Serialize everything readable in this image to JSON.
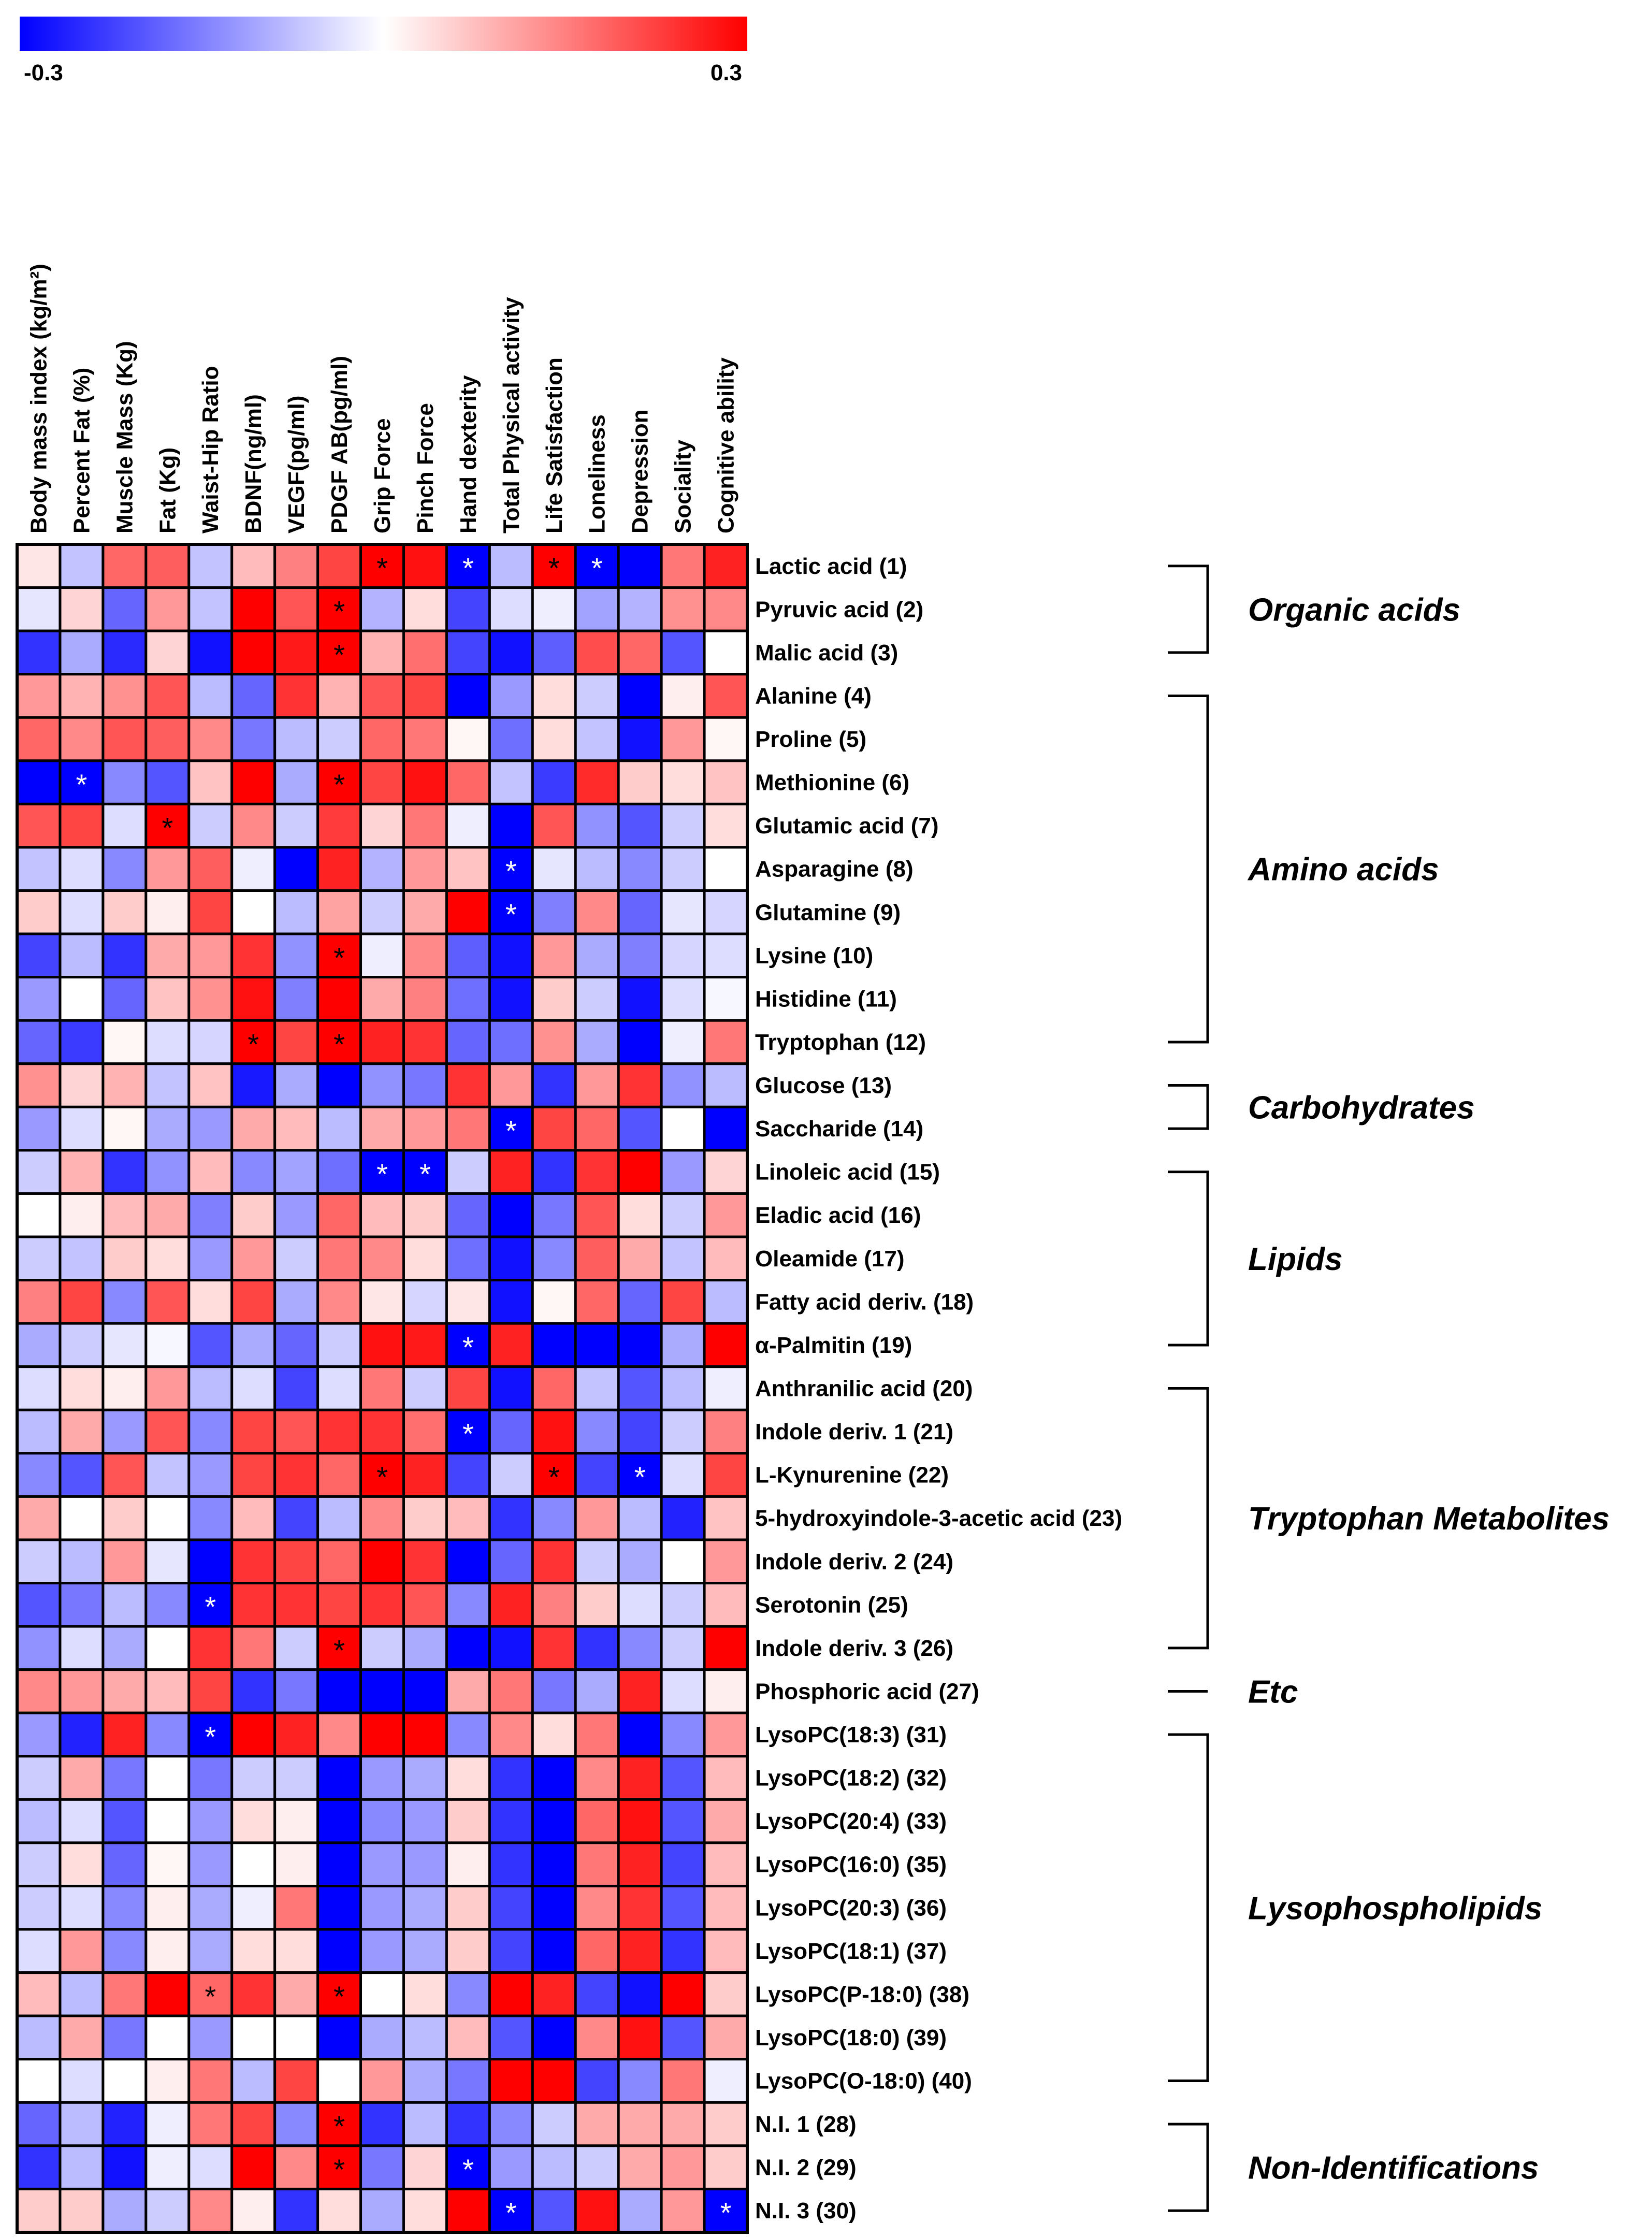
{
  "chart_data": {
    "type": "heatmap",
    "colorbar": {
      "min": -0.3,
      "max": 0.3,
      "min_label": "-0.3",
      "max_label": "0.3",
      "colors": {
        "negative": "#0000FF",
        "zero": "#FFFFFF",
        "positive": "#FF0000"
      }
    },
    "columns": [
      "Body mass index (kg/m²)",
      "Percent Fat (%)",
      "Muscle Mass (Kg)",
      "Fat (Kg)",
      "Waist-Hip Ratio",
      "BDNF(ng/ml)",
      "VEGF(pg/ml)",
      "PDGF AB(pg/ml)",
      "Grip Force",
      "Pinch Force",
      "Hand dexterity",
      "Total Physical activity",
      "Life Satisfaction",
      "Loneliness",
      "Depression",
      "Sociality",
      "Cognitive ability"
    ],
    "rows": [
      "Lactic acid (1)",
      "Pyruvic acid (2)",
      "Malic acid (3)",
      "Alanine (4)",
      "Proline (5)",
      "Methionine (6)",
      "Glutamic acid (7)",
      "Asparagine (8)",
      "Glutamine (9)",
      "Lysine (10)",
      "Histidine (11)",
      "Tryptophan (12)",
      "Glucose (13)",
      "Saccharide (14)",
      "Linoleic acid (15)",
      "Eladic acid (16)",
      "Oleamide (17)",
      "Fatty acid deriv. (18)",
      "α-Palmitin (19)",
      "Anthranilic acid (20)",
      "Indole deriv. 1  (21)",
      "L-Kynurenine (22)",
      "5-hydroxyindole-3-acetic acid (23)",
      "Indole deriv. 2 (24)",
      "Serotonin (25)",
      "Indole deriv. 3 (26)",
      "Phosphoric acid (27)",
      "LysoPC(18:3) (31)",
      "LysoPC(18:2) (32)",
      "LysoPC(20:4) (33)",
      "LysoPC(16:0) (35)",
      "LysoPC(20:3) (36)",
      "LysoPC(18:1) (37)",
      "LysoPC(P-18:0) (38)",
      "LysoPC(18:0) (39)",
      "LysoPC(O-18:0) (40)",
      "N.I. 1 (28)",
      "N.I. 2 (29)",
      "N.I. 3 (30)"
    ],
    "values": [
      [
        0.03,
        -0.07,
        0.18,
        0.19,
        -0.07,
        0.08,
        0.15,
        0.22,
        0.3,
        0.28,
        -0.3,
        -0.08,
        0.3,
        -0.3,
        -0.3,
        0.16,
        0.26
      ],
      [
        -0.03,
        0.05,
        -0.18,
        0.12,
        -0.07,
        0.3,
        0.2,
        0.3,
        -0.09,
        0.04,
        -0.22,
        -0.04,
        -0.02,
        -0.11,
        -0.09,
        0.13,
        0.14
      ],
      [
        -0.24,
        -0.1,
        -0.25,
        0.05,
        -0.28,
        0.3,
        0.27,
        0.3,
        0.09,
        0.17,
        -0.22,
        -0.28,
        -0.19,
        0.21,
        0.18,
        -0.2,
        0.0
      ],
      [
        0.12,
        0.09,
        0.13,
        0.2,
        -0.08,
        -0.18,
        0.24,
        0.09,
        0.2,
        0.22,
        -0.3,
        -0.12,
        0.04,
        -0.06,
        -0.3,
        0.02,
        0.2
      ],
      [
        0.18,
        0.14,
        0.2,
        0.19,
        0.14,
        -0.16,
        -0.08,
        -0.06,
        0.18,
        0.16,
        0.01,
        -0.17,
        0.04,
        -0.07,
        -0.28,
        0.12,
        0.01
      ],
      [
        -0.3,
        -0.3,
        -0.14,
        -0.2,
        0.07,
        0.3,
        -0.1,
        0.3,
        0.22,
        0.28,
        0.18,
        -0.07,
        -0.23,
        0.25,
        0.06,
        0.04,
        0.07
      ],
      [
        0.2,
        0.22,
        -0.04,
        0.3,
        -0.06,
        0.14,
        -0.06,
        0.23,
        0.05,
        0.16,
        -0.02,
        -0.3,
        0.2,
        -0.13,
        -0.2,
        -0.06,
        0.04
      ],
      [
        -0.07,
        -0.04,
        -0.14,
        0.12,
        0.19,
        -0.02,
        -0.3,
        0.26,
        -0.09,
        0.12,
        0.07,
        -0.3,
        -0.03,
        -0.08,
        -0.14,
        -0.06,
        0.0
      ],
      [
        0.06,
        -0.04,
        0.06,
        0.02,
        0.22,
        0.0,
        -0.08,
        0.11,
        -0.06,
        0.1,
        0.3,
        -0.3,
        -0.15,
        0.14,
        -0.18,
        -0.03,
        -0.05
      ],
      [
        -0.22,
        -0.08,
        -0.24,
        0.1,
        0.12,
        0.24,
        -0.13,
        0.3,
        -0.02,
        0.14,
        -0.19,
        -0.28,
        0.12,
        -0.1,
        -0.15,
        -0.05,
        -0.04
      ],
      [
        -0.12,
        0.0,
        -0.18,
        0.07,
        0.13,
        0.28,
        -0.15,
        0.3,
        0.1,
        0.15,
        -0.17,
        -0.28,
        0.06,
        -0.06,
        -0.28,
        -0.04,
        -0.01
      ],
      [
        -0.18,
        -0.23,
        0.01,
        -0.04,
        -0.05,
        0.3,
        0.22,
        0.3,
        0.26,
        0.24,
        -0.18,
        -0.17,
        0.13,
        -0.1,
        -0.3,
        -0.02,
        0.16
      ],
      [
        0.13,
        0.05,
        0.09,
        -0.07,
        0.07,
        -0.27,
        -0.1,
        -0.3,
        -0.13,
        -0.16,
        0.24,
        0.12,
        -0.24,
        0.12,
        0.24,
        -0.13,
        -0.08
      ],
      [
        -0.12,
        -0.04,
        0.01,
        -0.1,
        -0.12,
        0.1,
        0.08,
        -0.08,
        0.1,
        0.12,
        0.16,
        -0.3,
        0.22,
        0.18,
        -0.2,
        0.0,
        -0.3
      ],
      [
        -0.06,
        0.09,
        -0.24,
        -0.13,
        0.08,
        -0.14,
        -0.11,
        -0.17,
        -0.3,
        -0.3,
        -0.06,
        0.26,
        -0.24,
        0.24,
        0.3,
        -0.12,
        0.05
      ],
      [
        0.0,
        0.02,
        0.08,
        0.1,
        -0.15,
        0.06,
        -0.12,
        0.18,
        0.08,
        0.06,
        -0.18,
        -0.3,
        -0.16,
        0.2,
        0.04,
        -0.06,
        0.12
      ],
      [
        -0.06,
        -0.07,
        0.06,
        0.04,
        -0.12,
        0.12,
        -0.06,
        0.16,
        0.14,
        0.04,
        -0.17,
        -0.28,
        -0.14,
        0.19,
        0.1,
        -0.07,
        0.08
      ],
      [
        0.15,
        0.22,
        -0.14,
        0.2,
        0.04,
        0.22,
        -0.1,
        0.14,
        0.03,
        -0.05,
        0.03,
        -0.28,
        0.01,
        0.18,
        -0.18,
        0.22,
        -0.08
      ],
      [
        -0.1,
        -0.06,
        -0.03,
        -0.01,
        -0.2,
        -0.1,
        -0.18,
        -0.06,
        0.28,
        0.27,
        -0.3,
        0.26,
        -0.3,
        -0.3,
        -0.3,
        -0.1,
        0.3
      ],
      [
        -0.04,
        0.04,
        0.02,
        0.12,
        -0.08,
        -0.04,
        -0.22,
        -0.04,
        0.16,
        -0.06,
        0.22,
        -0.28,
        0.18,
        -0.07,
        -0.2,
        -0.08,
        -0.02
      ],
      [
        -0.08,
        0.1,
        -0.12,
        0.2,
        -0.14,
        0.22,
        0.2,
        0.24,
        0.24,
        0.17,
        -0.3,
        -0.18,
        0.28,
        -0.14,
        -0.22,
        -0.06,
        0.15
      ],
      [
        -0.14,
        -0.2,
        0.2,
        -0.07,
        -0.12,
        0.22,
        0.24,
        0.18,
        0.3,
        0.26,
        -0.22,
        -0.06,
        0.3,
        -0.22,
        -0.3,
        -0.04,
        0.22
      ],
      [
        0.1,
        0.0,
        0.06,
        0.0,
        -0.14,
        0.08,
        -0.22,
        -0.08,
        0.14,
        0.06,
        0.08,
        -0.24,
        -0.14,
        0.12,
        -0.08,
        -0.26,
        0.07
      ],
      [
        -0.06,
        -0.08,
        0.12,
        -0.03,
        -0.3,
        0.24,
        0.22,
        0.18,
        0.3,
        0.24,
        -0.3,
        -0.18,
        0.24,
        -0.06,
        -0.1,
        0.0,
        0.12
      ],
      [
        -0.2,
        -0.16,
        -0.08,
        -0.14,
        -0.3,
        0.24,
        0.24,
        0.22,
        0.24,
        0.2,
        -0.14,
        0.26,
        0.15,
        0.06,
        -0.04,
        -0.06,
        0.08
      ],
      [
        -0.13,
        -0.04,
        -0.1,
        0.0,
        0.24,
        0.16,
        -0.06,
        0.3,
        -0.06,
        -0.1,
        -0.3,
        -0.28,
        0.24,
        -0.24,
        -0.14,
        -0.06,
        0.3
      ],
      [
        0.14,
        0.12,
        0.1,
        0.08,
        0.22,
        -0.24,
        -0.16,
        -0.3,
        -0.3,
        -0.3,
        0.1,
        0.16,
        -0.16,
        -0.1,
        0.26,
        -0.04,
        0.02
      ],
      [
        -0.12,
        -0.26,
        0.26,
        -0.14,
        -0.3,
        0.3,
        0.26,
        0.14,
        0.3,
        0.3,
        -0.14,
        0.14,
        0.04,
        0.16,
        -0.3,
        -0.14,
        0.12
      ],
      [
        -0.06,
        0.1,
        -0.16,
        0.0,
        -0.16,
        -0.06,
        -0.06,
        -0.3,
        -0.12,
        -0.1,
        0.04,
        -0.24,
        -0.3,
        0.14,
        0.26,
        -0.2,
        0.08
      ],
      [
        -0.08,
        -0.04,
        -0.2,
        0.0,
        -0.12,
        0.04,
        0.02,
        -0.3,
        -0.14,
        -0.12,
        0.06,
        -0.24,
        -0.3,
        0.18,
        0.28,
        -0.2,
        0.1
      ],
      [
        -0.06,
        0.04,
        -0.18,
        0.01,
        -0.12,
        0.0,
        0.02,
        -0.3,
        -0.12,
        -0.12,
        0.02,
        -0.24,
        -0.3,
        0.16,
        0.26,
        -0.22,
        0.08
      ],
      [
        -0.06,
        -0.04,
        -0.14,
        0.02,
        -0.1,
        -0.02,
        0.16,
        -0.3,
        -0.12,
        -0.1,
        0.06,
        -0.22,
        -0.3,
        0.14,
        0.24,
        -0.2,
        0.08
      ],
      [
        -0.04,
        0.12,
        -0.14,
        0.02,
        -0.1,
        0.04,
        0.04,
        -0.3,
        -0.12,
        -0.1,
        0.06,
        -0.22,
        -0.3,
        0.18,
        0.26,
        -0.24,
        0.08
      ],
      [
        0.08,
        -0.08,
        0.16,
        0.3,
        0.18,
        0.24,
        0.1,
        0.3,
        0.0,
        0.04,
        -0.14,
        0.3,
        0.26,
        -0.22,
        -0.28,
        0.3,
        0.06
      ],
      [
        -0.08,
        0.1,
        -0.16,
        0.0,
        -0.12,
        0.0,
        0.0,
        -0.3,
        -0.1,
        -0.08,
        0.08,
        -0.2,
        -0.3,
        0.14,
        0.28,
        -0.2,
        0.1
      ],
      [
        0.0,
        -0.04,
        0.0,
        0.02,
        0.16,
        -0.08,
        0.22,
        0.0,
        0.12,
        -0.1,
        -0.16,
        0.3,
        0.3,
        -0.22,
        -0.14,
        0.16,
        -0.02
      ],
      [
        -0.18,
        -0.08,
        -0.26,
        -0.02,
        0.16,
        0.22,
        -0.14,
        0.3,
        -0.24,
        -0.08,
        -0.24,
        -0.14,
        -0.06,
        0.1,
        0.1,
        0.1,
        0.06
      ],
      [
        -0.24,
        -0.08,
        -0.28,
        -0.02,
        -0.04,
        0.3,
        0.14,
        0.3,
        -0.16,
        0.05,
        -0.3,
        -0.12,
        -0.08,
        -0.06,
        0.1,
        0.12,
        0.06
      ],
      [
        0.06,
        0.06,
        -0.1,
        -0.06,
        0.14,
        0.02,
        -0.24,
        0.04,
        -0.1,
        0.04,
        0.3,
        -0.3,
        -0.2,
        0.28,
        -0.1,
        0.12,
        -0.3
      ]
    ],
    "significant": [
      [
        0,
        8
      ],
      [
        0,
        10
      ],
      [
        0,
        12
      ],
      [
        0,
        13
      ],
      [
        1,
        7
      ],
      [
        2,
        7
      ],
      [
        5,
        1
      ],
      [
        5,
        7
      ],
      [
        6,
        3
      ],
      [
        7,
        11
      ],
      [
        8,
        11
      ],
      [
        9,
        7
      ],
      [
        11,
        5
      ],
      [
        11,
        7
      ],
      [
        13,
        11
      ],
      [
        14,
        8
      ],
      [
        14,
        9
      ],
      [
        18,
        10
      ],
      [
        20,
        10
      ],
      [
        21,
        8
      ],
      [
        21,
        12
      ],
      [
        21,
        14
      ],
      [
        24,
        4
      ],
      [
        25,
        7
      ],
      [
        27,
        4
      ],
      [
        33,
        4
      ],
      [
        33,
        7
      ],
      [
        36,
        7
      ],
      [
        37,
        7
      ],
      [
        37,
        10
      ],
      [
        38,
        11
      ],
      [
        38,
        16
      ]
    ],
    "significance_marker": "*",
    "groups": [
      {
        "name": "Organic acids",
        "start": 0,
        "end": 2
      },
      {
        "name": "Amino acids",
        "start": 3,
        "end": 11
      },
      {
        "name": "Carbohydrates",
        "start": 12,
        "end": 13
      },
      {
        "name": "Lipids",
        "start": 14,
        "end": 18
      },
      {
        "name": "Tryptophan Metabolites",
        "start": 19,
        "end": 25
      },
      {
        "name": "Etc",
        "start": 26,
        "end": 26
      },
      {
        "name": "Lysophospholipids",
        "start": 27,
        "end": 35
      },
      {
        "name": "Non-Identifications",
        "start": 36,
        "end": 38
      }
    ]
  }
}
